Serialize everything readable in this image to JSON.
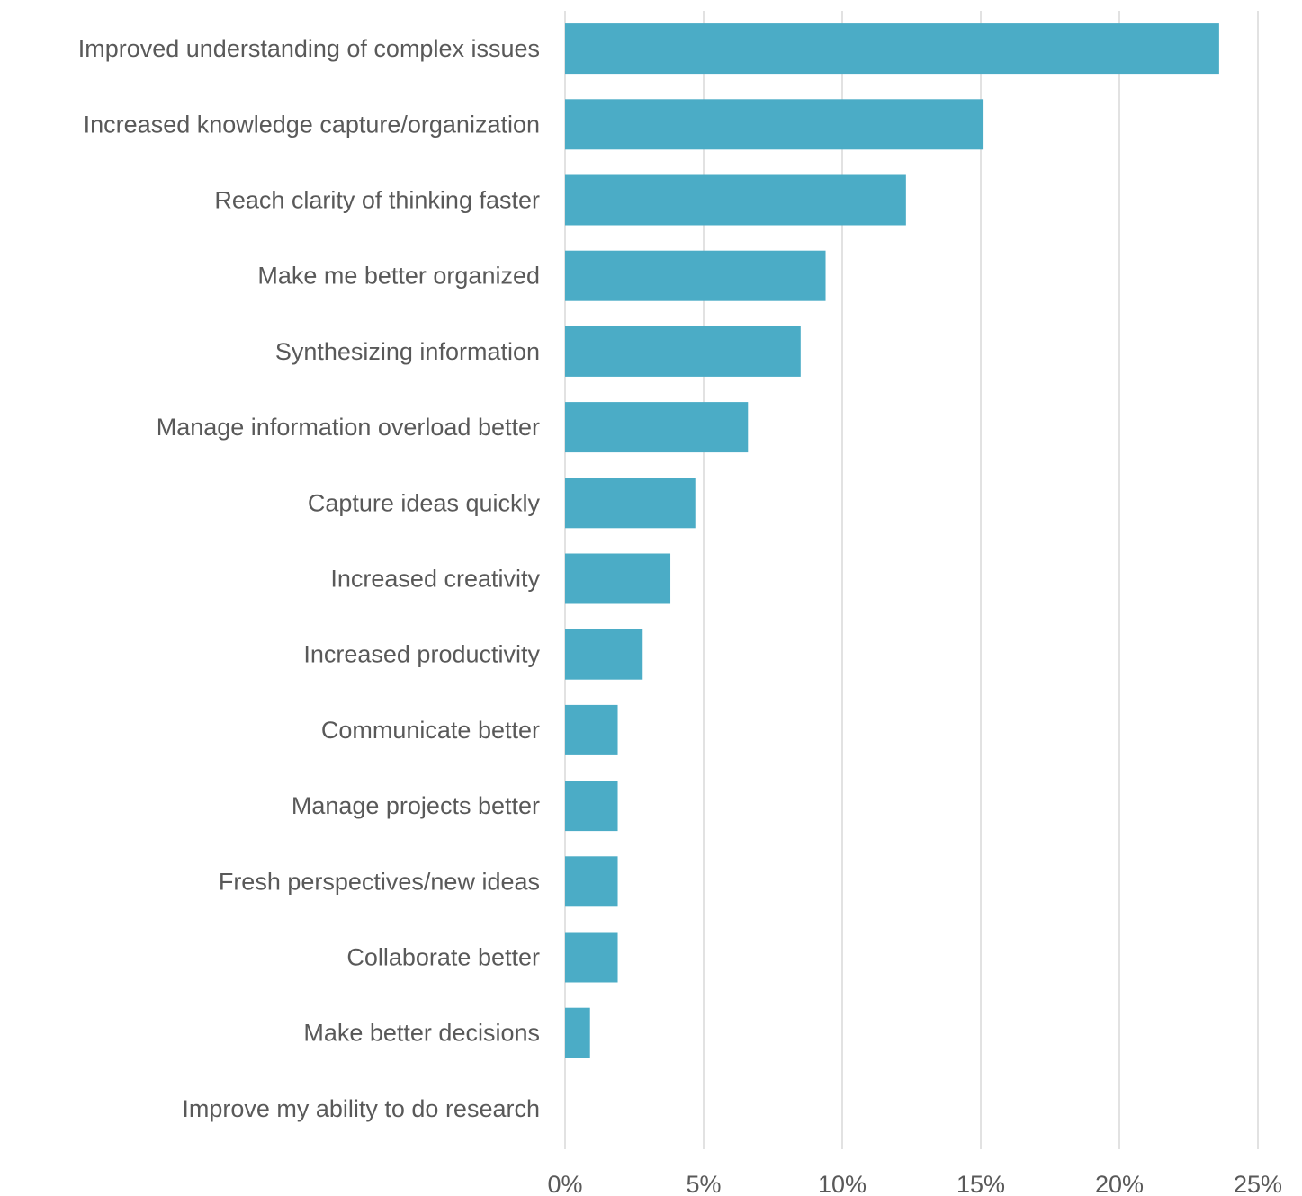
{
  "chart_data": {
    "type": "bar",
    "orientation": "horizontal",
    "categories": [
      "Improved understanding of complex issues",
      "Increased knowledge capture/organization",
      "Reach clarity of thinking faster",
      "Make me better organized",
      "Synthesizing information",
      "Manage information overload better",
      "Capture ideas quickly",
      "Increased creativity",
      "Increased productivity",
      "Communicate better",
      "Manage projects better",
      "Fresh perspectives/new ideas",
      "Collaborate better",
      "Make better decisions",
      "Improve my ability to do research"
    ],
    "values": [
      23.6,
      15.1,
      12.3,
      9.4,
      8.5,
      6.6,
      4.7,
      3.8,
      2.8,
      1.9,
      1.9,
      1.9,
      1.9,
      0.9,
      0
    ],
    "xlim": [
      0,
      25
    ],
    "xticks": [
      0,
      5,
      10,
      15,
      20,
      25
    ],
    "tick_labels": [
      "0%",
      "5%",
      "10%",
      "15%",
      "20%",
      "25%"
    ],
    "title": "",
    "xlabel": "",
    "ylabel": "",
    "grid": "vertical",
    "legend": "none",
    "colors": {
      "bar": "#4bacc6",
      "grid": "#d9d9d9",
      "text": "#595959"
    }
  }
}
